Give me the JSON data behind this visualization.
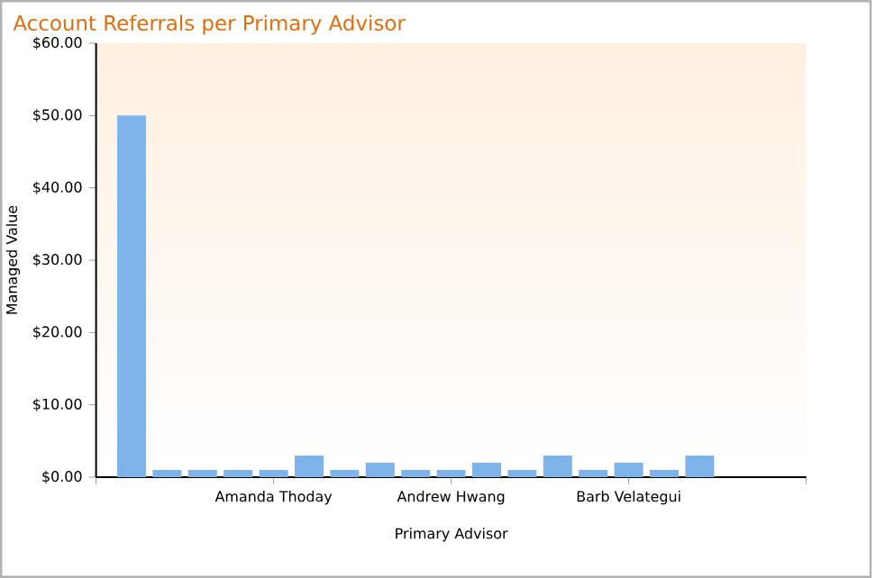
{
  "chart_data": {
    "type": "bar",
    "title": "Account Referrals per Primary Advisor",
    "xlabel": "Primary Advisor",
    "ylabel": "Managed Value",
    "categories": [
      null,
      null,
      null,
      null,
      "Amanda Thoday",
      null,
      null,
      null,
      null,
      "Andrew Hwang",
      null,
      null,
      null,
      null,
      "Barb Velategui",
      null,
      null
    ],
    "values": [
      50,
      1,
      1,
      1,
      1,
      3,
      1,
      2,
      1,
      1,
      2,
      1,
      3,
      1,
      2,
      1,
      3
    ],
    "color": "#7eb4ea",
    "ylim": [
      0,
      60
    ],
    "yticks": [
      {
        "value": 0,
        "label": "$0.00"
      },
      {
        "value": 10,
        "label": "$10.00"
      },
      {
        "value": 20,
        "label": "$20.00"
      },
      {
        "value": 30,
        "label": "$30.00"
      },
      {
        "value": 40,
        "label": "$40.00"
      },
      {
        "value": 50,
        "label": "$50.00"
      },
      {
        "value": 60,
        "label": "$60.00"
      }
    ],
    "grid": false
  }
}
